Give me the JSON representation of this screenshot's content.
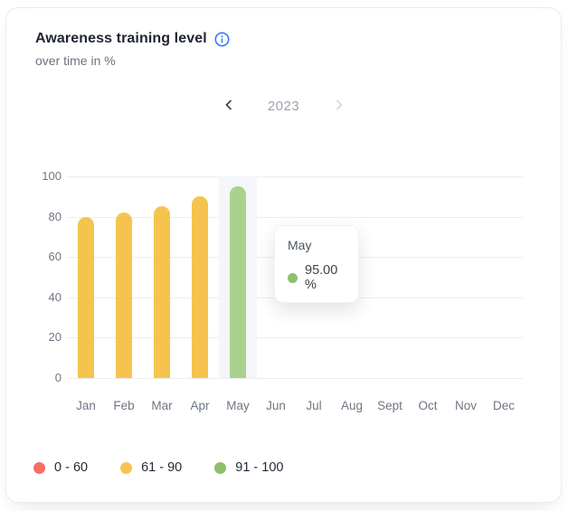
{
  "header": {
    "title": "Awareness training level",
    "subtitle": "over time in %"
  },
  "year_nav": {
    "year": "2023",
    "prev_enabled": true,
    "next_enabled": false
  },
  "chart_data": {
    "type": "bar",
    "title": "Awareness training level",
    "subtitle": "over time in %",
    "categories": [
      "Jan",
      "Feb",
      "Mar",
      "Apr",
      "May",
      "Jun",
      "Jul",
      "Aug",
      "Sept",
      "Oct",
      "Nov",
      "Dec"
    ],
    "values": [
      80,
      82,
      85,
      90,
      95,
      null,
      null,
      null,
      null,
      null,
      null,
      null
    ],
    "ylim": [
      0,
      100
    ],
    "yticks": [
      0,
      20,
      40,
      60,
      80,
      100
    ],
    "grid": true,
    "legend_position": "bottom-left",
    "color_buckets": [
      {
        "label": "0 - 60",
        "min": 0,
        "max": 60,
        "color": "#F96D63"
      },
      {
        "label": "61 - 90",
        "min": 61,
        "max": 90,
        "color": "#F6C44E"
      },
      {
        "label": "91 - 100",
        "min": 91,
        "max": 100,
        "color": "#8FBF6E"
      }
    ],
    "highlight": {
      "index": 4,
      "bar_color": "#A9D28E",
      "band_color": "#F4F6FA"
    }
  },
  "tooltip": {
    "title": "May",
    "value": "95.00 %",
    "dot_color": "#8FBF6E"
  },
  "colors": {
    "info_icon": "#3479F6",
    "gridline": "#ECEDF1",
    "axis_text": "#6F7683",
    "chevron_active": "#3F4754",
    "chevron_disabled": "#D3D7DD"
  }
}
